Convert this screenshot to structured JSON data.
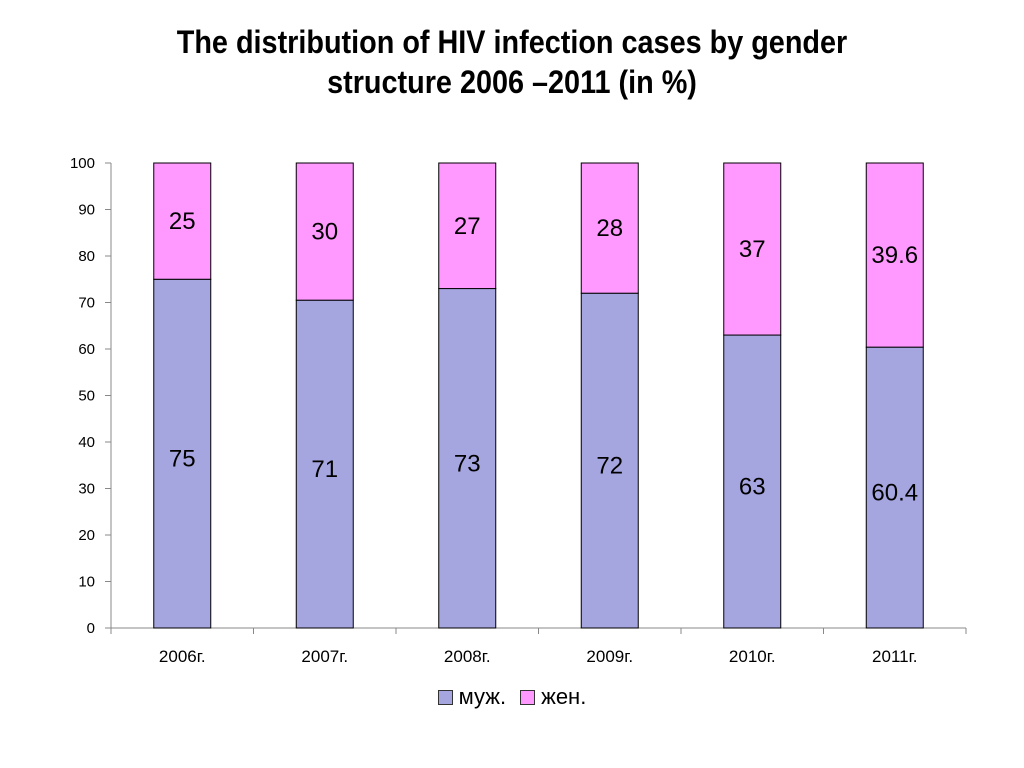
{
  "chart_data": {
    "type": "bar",
    "stacked": true,
    "title_lines": [
      "The distribution of HIV infection cases by gender",
      "structure 2006 –2011 (in %)"
    ],
    "categories": [
      "2006г.",
      "2007г.",
      "2008г.",
      "2009г.",
      "2010г.",
      "2011г."
    ],
    "series": [
      {
        "name": "муж.",
        "color": "#a5a5e0",
        "values": [
          75,
          70.5,
          73,
          72,
          63,
          60.4
        ],
        "labels": [
          "75",
          "71",
          "73",
          "72",
          "63",
          "60.4"
        ]
      },
      {
        "name": "жен.",
        "color": "#ff99ff",
        "values": [
          25,
          29.5,
          27,
          28,
          37,
          39.6
        ],
        "labels": [
          "25",
          "30",
          "27",
          "28",
          "37",
          "39.6"
        ]
      }
    ],
    "ylim": [
      0,
      100
    ],
    "yticks": [
      "0",
      "10",
      "20",
      "30",
      "40",
      "50",
      "60",
      "70",
      "80",
      "90",
      "100"
    ],
    "grid": false,
    "legend_position": "bottom"
  }
}
